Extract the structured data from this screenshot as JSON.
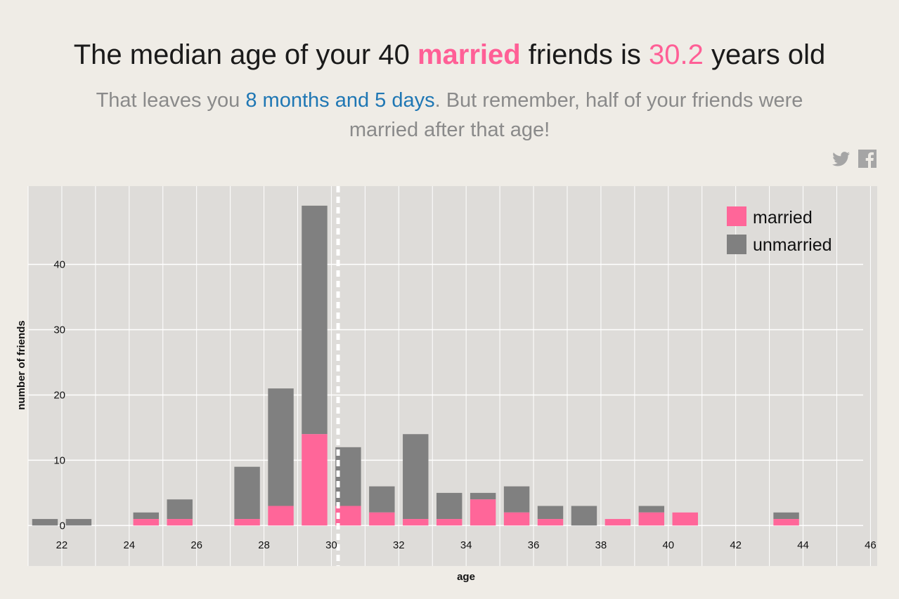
{
  "headline": {
    "prefix": "The median age of your 40 ",
    "highlight": "married",
    "middle": " friends is ",
    "value": "30.2",
    "suffix": " years old"
  },
  "subline": {
    "prefix": "That leaves you ",
    "highlight": "8 months and 5 days",
    "suffix": ". But remember, half of your friends were married after that age!"
  },
  "share": {
    "twitter_icon": "twitter-icon",
    "facebook_icon": "facebook-icon"
  },
  "colors": {
    "married": "#ff6699",
    "unmarried": "#808080",
    "plot_bg": "#dedcd9",
    "grid": "#ffffff",
    "text": "#1a1a1a"
  },
  "chart_data": {
    "type": "bar",
    "stacked": true,
    "xlabel": "age",
    "ylabel": "number of friends",
    "xlim": [
      21,
      46.2
    ],
    "ylim": [
      -6.2,
      52
    ],
    "x_ticks": [
      22,
      24,
      26,
      28,
      30,
      32,
      34,
      36,
      38,
      40,
      42,
      44,
      46
    ],
    "y_ticks": [
      0,
      10,
      20,
      30,
      40
    ],
    "grid": true,
    "legend_position": "top-right",
    "median_marker": 30.2,
    "x": [
      21.5,
      22.5,
      24.5,
      25.5,
      27.5,
      28.5,
      29.5,
      30.5,
      31.5,
      32.5,
      33.5,
      34.5,
      35.5,
      36.5,
      37.5,
      38.5,
      39.5,
      40.5,
      43.5
    ],
    "series": [
      {
        "name": "married",
        "values": [
          0,
          0,
          1,
          1,
          1,
          3,
          14,
          3,
          2,
          1,
          1,
          4,
          2,
          1,
          0,
          1,
          2,
          2,
          1
        ]
      },
      {
        "name": "unmarried",
        "values": [
          1,
          1,
          1,
          3,
          8,
          18,
          35,
          9,
          4,
          13,
          4,
          1,
          4,
          2,
          3,
          0,
          1,
          0,
          1
        ]
      }
    ]
  }
}
